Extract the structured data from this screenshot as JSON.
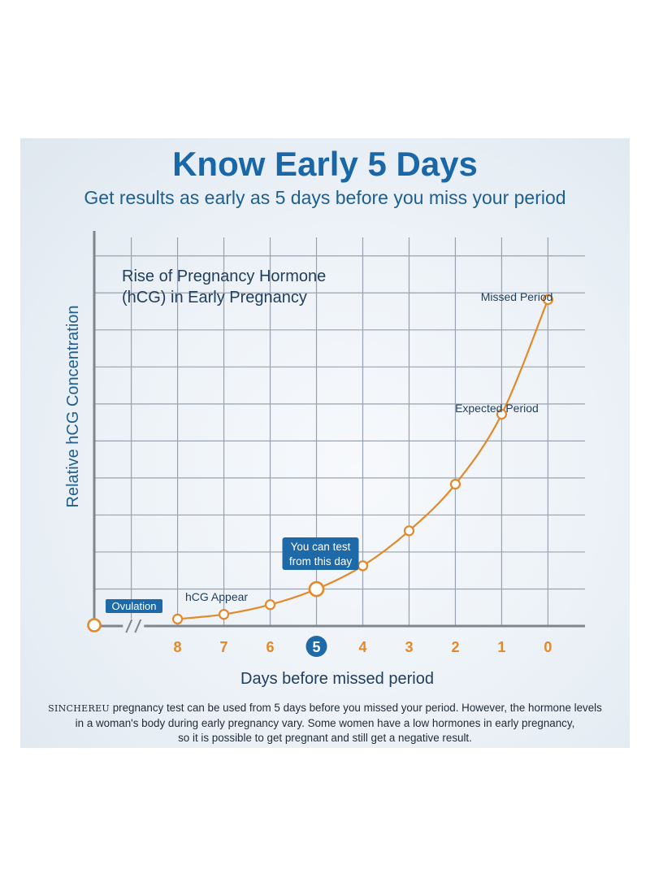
{
  "header": {
    "title": "Know Early 5 Days",
    "subtitle": "Get results as early as 5 days before you miss your period"
  },
  "footnote": {
    "brand": "SINCHEREU",
    "line1": " pregnancy test can be used from 5 days before you missed your period. However,  the hormone levels",
    "line2": "in a woman's body during early pregnancy vary. Some women have a low hormones in early pregnancy,",
    "line3": "so it is possible to get pregnant and still get a negative result."
  },
  "colors": {
    "title": "#1a67a7",
    "axis_text": "#1f5f8f",
    "curve": "#e28a2b",
    "grid": "#9aa3ad",
    "axis": "#7e858c",
    "badge": "#1e6aa8"
  },
  "chart_data": {
    "type": "line",
    "title_lines": [
      "Rise of Pregnancy Hormone",
      "(hCG) in Early Pregnancy"
    ],
    "xlabel": "Days before missed period",
    "ylabel": "Relative hCG Concentration",
    "categories": [
      "8",
      "7",
      "6",
      "5",
      "4",
      "3",
      "2",
      "1",
      "0"
    ],
    "highlight_category": "5",
    "xlim": [
      9.8,
      -0.8
    ],
    "ylim": [
      0,
      10
    ],
    "grid": true,
    "series": [
      {
        "name": "Relative hCG Concentration",
        "x": [
          8,
          7,
          6,
          5,
          4,
          3,
          2,
          1,
          0
        ],
        "y": [
          0.18,
          0.3,
          0.55,
          0.95,
          1.55,
          2.45,
          3.65,
          5.45,
          8.4
        ]
      }
    ],
    "ovulation": {
      "label": "Ovulation",
      "x": 9.8,
      "y": 0
    },
    "axis_break_symbol": "//",
    "annotations": [
      {
        "text": "hCG Appear",
        "x": 8
      },
      {
        "text": "Missed Period",
        "x": 0
      },
      {
        "text": "Expected Period",
        "x": 1
      }
    ],
    "callout": {
      "lines": [
        "You can test",
        "from this day"
      ],
      "x": 5
    }
  }
}
